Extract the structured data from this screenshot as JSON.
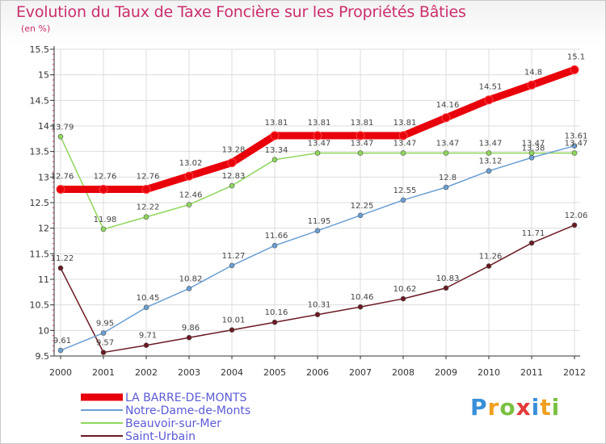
{
  "chart_data": {
    "type": "line",
    "title": "Evolution du Taux de Taxe Foncière sur les Propriétés Bâties",
    "unit_label": "(en %)",
    "x": [
      "2000",
      "2001",
      "2002",
      "2003",
      "2004",
      "2005",
      "2006",
      "2007",
      "2008",
      "2009",
      "2010",
      "2011",
      "2012"
    ],
    "ylim": [
      9.5,
      15.5
    ],
    "yticks": [
      "9.5",
      "10",
      "10.5",
      "11",
      "11.5",
      "12",
      "12.5",
      "13",
      "13.5",
      "14",
      "14.5",
      "15",
      "15.5"
    ],
    "grid": true,
    "legend_position": "bottom-left",
    "series": [
      {
        "name": "LA BARRE-DE-MONTS",
        "color": "#e8000b",
        "values": [
          12.76,
          12.76,
          12.76,
          13.02,
          13.28,
          13.81,
          13.81,
          13.81,
          13.81,
          14.16,
          14.51,
          14.8,
          15.1
        ],
        "labels": [
          "12.76",
          "12.76",
          "12.76",
          "13.02",
          "13.28",
          "13.81",
          "13.81",
          "13.81",
          "13.81",
          "14.16",
          "14.51",
          "14.8",
          "15.1"
        ]
      },
      {
        "name": "Notre-Dame-de-Monts",
        "color": "#6a9fd4",
        "values": [
          9.61,
          9.95,
          10.45,
          10.82,
          11.27,
          11.66,
          11.95,
          12.25,
          12.55,
          12.8,
          13.12,
          13.38,
          13.61
        ],
        "labels": [
          "9.61",
          "9.95",
          "10.45",
          "10.82",
          "11.27",
          "11.66",
          "11.95",
          "12.25",
          "12.55",
          "12.8",
          "13.12",
          "13.38",
          "13.61"
        ]
      },
      {
        "name": "Beauvoir-sur-Mer",
        "color": "#8fd65c",
        "values": [
          13.79,
          11.98,
          12.22,
          12.46,
          12.83,
          13.34,
          13.47,
          13.47,
          13.47,
          13.47,
          13.47,
          13.47,
          13.47
        ],
        "labels": [
          "13.79",
          "11.98",
          "12.22",
          "12.46",
          "12.83",
          "13.34",
          "13.47",
          "13.47",
          "13.47",
          "13.47",
          "13.47",
          "13.47",
          "13.47"
        ]
      },
      {
        "name": "Saint-Urbain",
        "color": "#6b1a22",
        "values": [
          11.22,
          9.57,
          9.71,
          9.86,
          10.01,
          10.16,
          10.31,
          10.46,
          10.62,
          10.83,
          11.26,
          11.71,
          12.06
        ],
        "labels": [
          "11.22",
          "9.57",
          "9.71",
          "9.86",
          "10.01",
          "10.16",
          "10.31",
          "10.46",
          "10.62",
          "10.83",
          "11.26",
          "11.71",
          "12.06"
        ]
      }
    ]
  },
  "logo": {
    "text": "Proxiti"
  },
  "colors": {
    "title": "#cc2e6e",
    "legend_text": "#5b5bd6",
    "grid": "#dddddd"
  }
}
